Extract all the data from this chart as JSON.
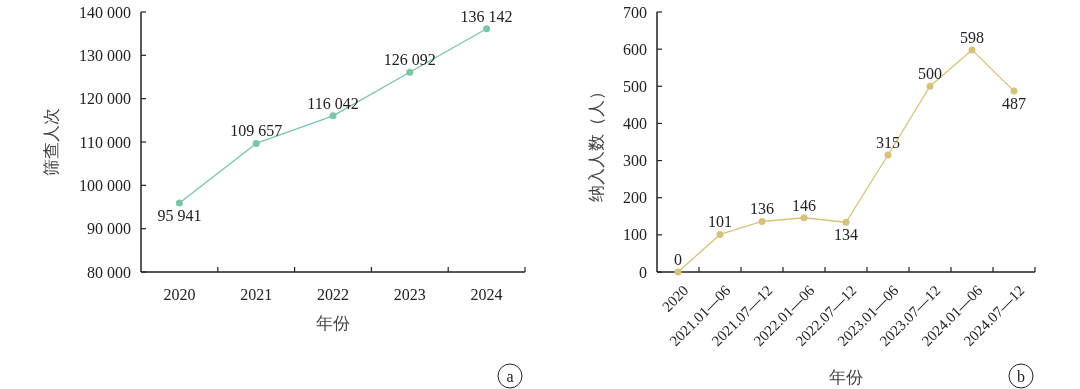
{
  "chart_data": [
    {
      "type": "line",
      "categories": [
        "2020",
        "2021",
        "2022",
        "2023",
        "2024"
      ],
      "xlabel": "年份",
      "ylabel": "筛查人次",
      "ylim": [
        80000,
        140000
      ],
      "yticks": [
        {
          "value": 80000,
          "label": "80 000"
        },
        {
          "value": 90000,
          "label": "90 000"
        },
        {
          "value": 100000,
          "label": "100 000"
        },
        {
          "value": 110000,
          "label": "110 000"
        },
        {
          "value": 120000,
          "label": "120 000"
        },
        {
          "value": 130000,
          "label": "130 000"
        },
        {
          "value": 140000,
          "label": "140 000"
        }
      ],
      "series": [
        {
          "color": "#7cc5a6",
          "values": [
            95941,
            109657,
            116042,
            126092,
            136142
          ],
          "value_labels": [
            "95 941",
            "109 657",
            "116 042",
            "126 092",
            "136 142"
          ]
        }
      ],
      "marker": "circle",
      "annotations": [
        "a"
      ]
    },
    {
      "type": "line",
      "categories": [
        "2020",
        "2021.01—06",
        "2021.07—12",
        "2022.01—06",
        "2022.07—12",
        "2023.01—06",
        "2023.07—12",
        "2024.01—06",
        "2024.07—12"
      ],
      "xlabel": "年份",
      "ylabel": "纳入人数（人）",
      "ylim": [
        0,
        700
      ],
      "yticks": [
        0,
        100,
        200,
        300,
        400,
        500,
        600,
        700
      ],
      "series": [
        {
          "color": "#d6c27c",
          "values": [
            0,
            101,
            136,
            146,
            134,
            315,
            500,
            598,
            487
          ]
        }
      ],
      "data_labels": true,
      "marker": "circle",
      "annotations": [
        "b"
      ]
    }
  ]
}
